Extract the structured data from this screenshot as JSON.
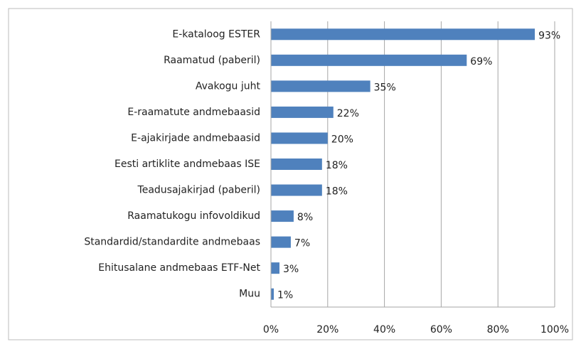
{
  "chart_data": {
    "type": "hbar",
    "categories": [
      "E-kataloog ESTER",
      "Raamatud (paberil)",
      "Avakogu juht",
      "E-raamatute andmebaasid",
      "E-ajakirjade andmebaasid",
      "Eesti artiklite andmebaas ISE",
      "Teadusajakirjad (paberil)",
      "Raamatukogu infovoldikud",
      "Standardid/standardite andmebaas",
      "Ehitusalane andmebaas ETF-Net",
      "Muu"
    ],
    "values": [
      93,
      69,
      35,
      22,
      20,
      18,
      18,
      8,
      7,
      3,
      1
    ],
    "value_labels": [
      "93%",
      "69%",
      "35%",
      "22%",
      "20%",
      "18%",
      "18%",
      "8%",
      "7%",
      "3%",
      "1%"
    ],
    "color": "#4f81bd",
    "xlim": [
      0,
      100
    ],
    "xticks": [
      {
        "value": 0,
        "label": "0%"
      },
      {
        "value": 20,
        "label": "20%"
      },
      {
        "value": 40,
        "label": "40%"
      },
      {
        "value": 60,
        "label": "60%"
      },
      {
        "value": 80,
        "label": "80%"
      },
      {
        "value": 100,
        "label": "100%"
      }
    ],
    "grid": true
  }
}
